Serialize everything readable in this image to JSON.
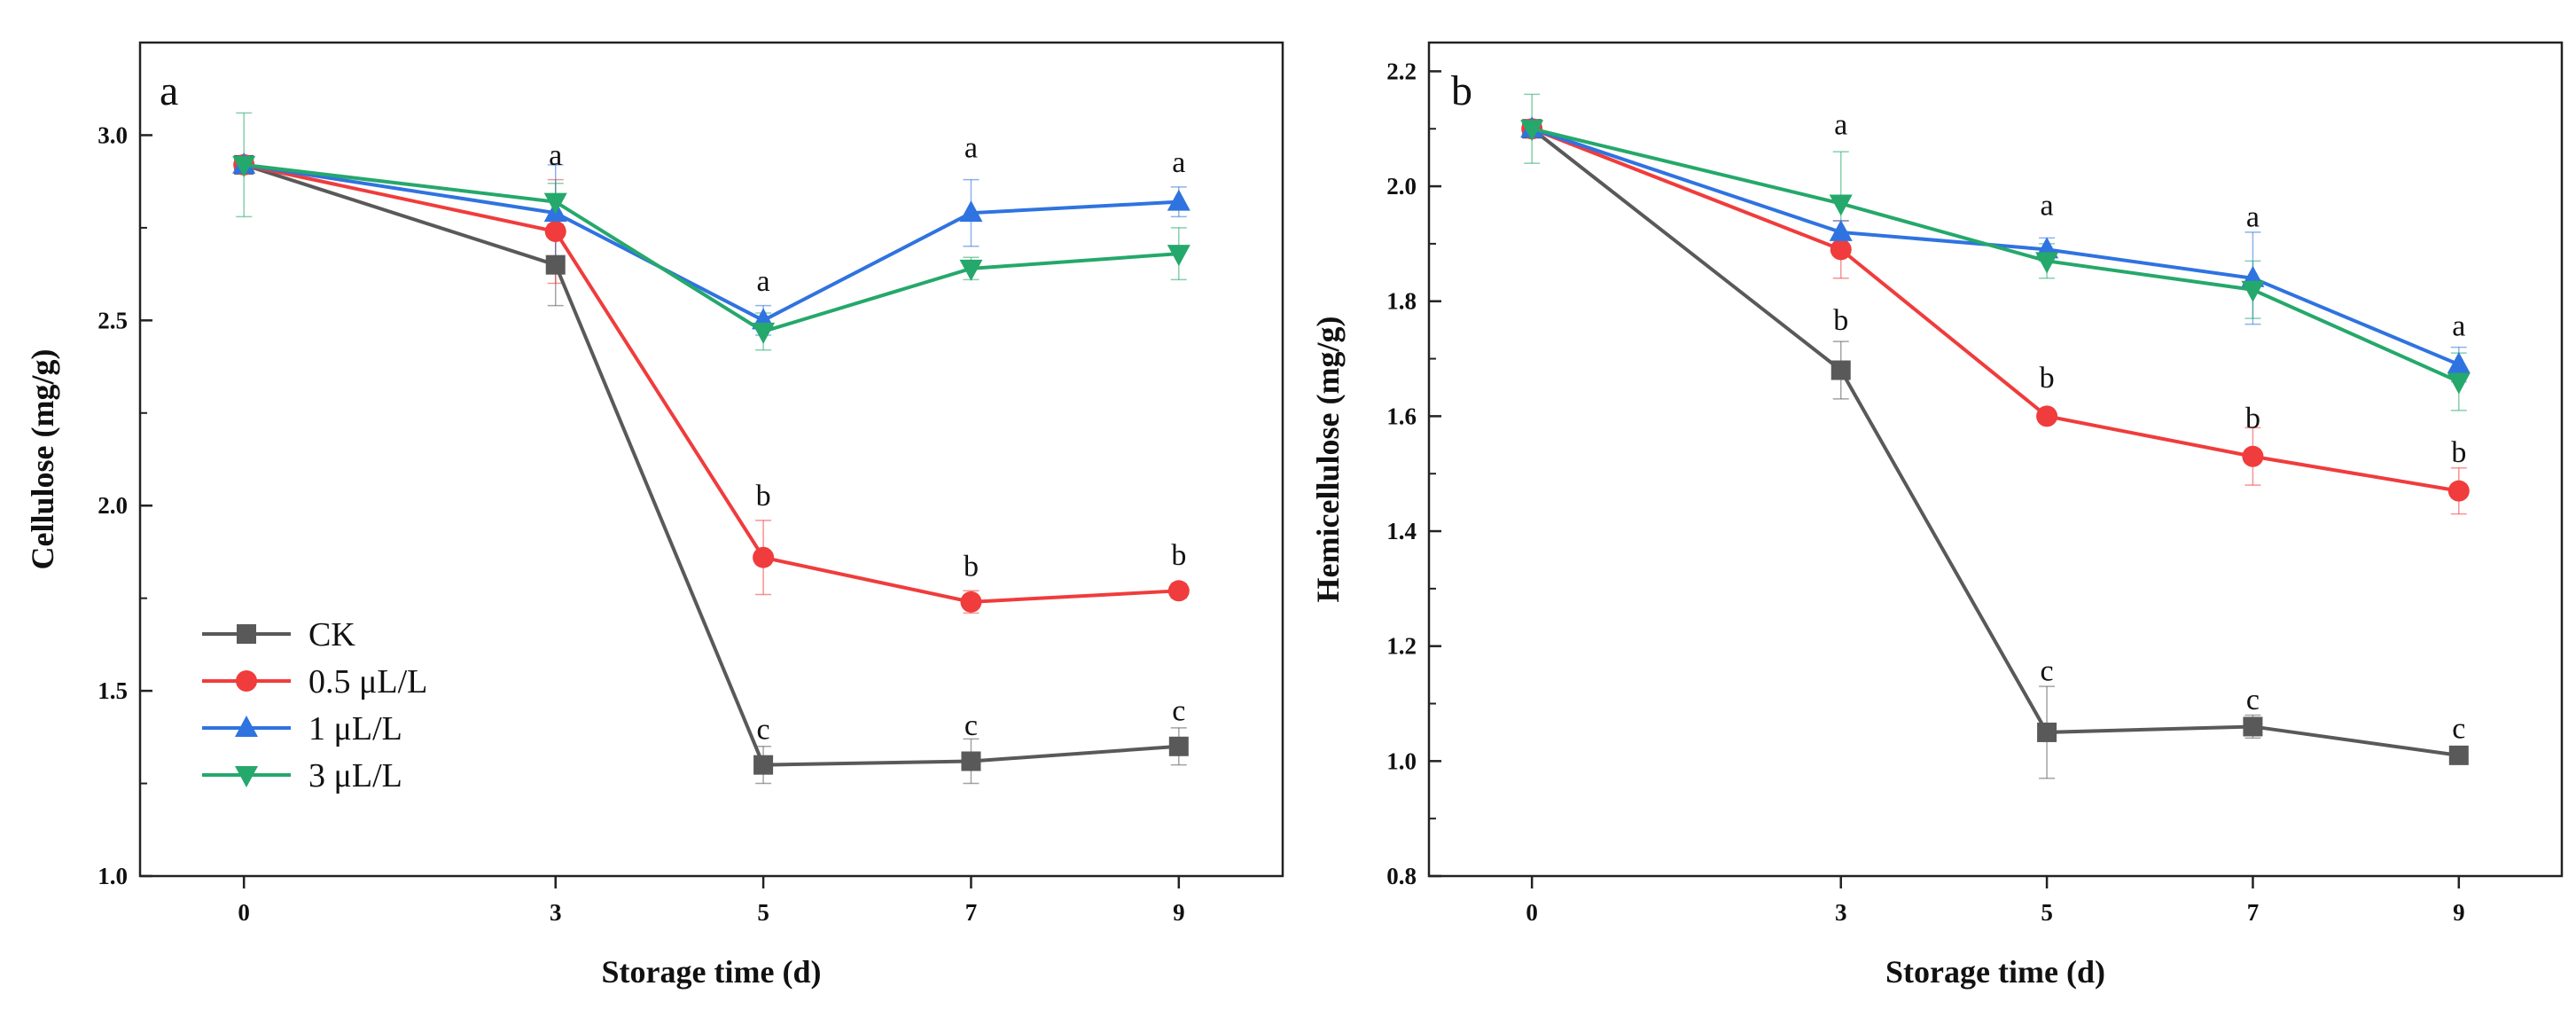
{
  "chart_data": [
    {
      "type": "line",
      "panel_label": "a",
      "xlabel": "Storage time (d)",
      "ylabel": "Cellulose (mg/g)",
      "x": [
        0,
        3,
        5,
        7,
        9
      ],
      "x_tick_labels": [
        "0",
        "3",
        "5",
        "7",
        "9"
      ],
      "y_tick_labels": [
        "1.0",
        "1.5",
        "2.0",
        "2.5",
        "3.0"
      ],
      "ylim": [
        1.0,
        3.25
      ],
      "y_ticks": [
        1.0,
        1.5,
        2.0,
        2.5,
        3.0
      ],
      "series": [
        {
          "name": "CK",
          "color": "#595959",
          "marker": "square",
          "values": [
            2.92,
            2.65,
            1.3,
            1.31,
            1.35
          ],
          "errors": [
            0.0,
            0.11,
            0.05,
            0.06,
            0.05
          ]
        },
        {
          "name": "0.5 μL/L",
          "color": "#f03c3c",
          "marker": "circle",
          "values": [
            2.92,
            2.74,
            1.86,
            1.74,
            1.77
          ],
          "errors": [
            0.0,
            0.14,
            0.1,
            0.03,
            0.02
          ]
        },
        {
          "name": "1 μL/L",
          "color": "#2f73e0",
          "marker": "triangle-up",
          "values": [
            2.92,
            2.79,
            2.5,
            2.79,
            2.82
          ],
          "errors": [
            0.0,
            0.13,
            0.04,
            0.09,
            0.04
          ]
        },
        {
          "name": "3 μL/L",
          "color": "#25a86b",
          "marker": "triangle-down",
          "values": [
            2.92,
            2.82,
            2.47,
            2.64,
            2.68
          ],
          "errors": [
            0.14,
            0.05,
            0.05,
            0.03,
            0.07
          ]
        }
      ],
      "annotations": [
        {
          "x": 3,
          "y": 2.92,
          "text": "a"
        },
        {
          "x": 5,
          "y": 2.58,
          "text": "a"
        },
        {
          "x": 7,
          "y": 2.94,
          "text": "a"
        },
        {
          "x": 9,
          "y": 2.9,
          "text": "a"
        },
        {
          "x": 5,
          "y": 2.0,
          "text": "b"
        },
        {
          "x": 7,
          "y": 1.81,
          "text": "b"
        },
        {
          "x": 9,
          "y": 1.84,
          "text": "b"
        },
        {
          "x": 5,
          "y": 1.37,
          "text": "c"
        },
        {
          "x": 7,
          "y": 1.38,
          "text": "c"
        },
        {
          "x": 9,
          "y": 1.42,
          "text": "c"
        }
      ],
      "legend": {
        "position": "bottom-left",
        "entries": [
          "CK",
          "0.5 μL/L",
          "1 μL/L",
          "3 μL/L"
        ]
      }
    },
    {
      "type": "line",
      "panel_label": "b",
      "xlabel": "Storage time (d)",
      "ylabel": "Hemicellulose (mg/g)",
      "x": [
        0,
        3,
        5,
        7,
        9
      ],
      "x_tick_labels": [
        "0",
        "3",
        "5",
        "7",
        "9"
      ],
      "y_tick_labels": [
        "0.8",
        "1.0",
        "1.2",
        "1.4",
        "1.6",
        "1.8",
        "2.0",
        "2.2"
      ],
      "ylim": [
        0.8,
        2.25
      ],
      "y_ticks": [
        0.8,
        1.0,
        1.2,
        1.4,
        1.6,
        1.8,
        2.0,
        2.2
      ],
      "series": [
        {
          "name": "CK",
          "color": "#595959",
          "marker": "square",
          "values": [
            2.1,
            1.68,
            1.05,
            1.06,
            1.01
          ],
          "errors": [
            0.0,
            0.05,
            0.08,
            0.02,
            0.01
          ]
        },
        {
          "name": "0.5 μL/L",
          "color": "#f03c3c",
          "marker": "circle",
          "values": [
            2.1,
            1.89,
            1.6,
            1.53,
            1.47
          ],
          "errors": [
            0.0,
            0.05,
            0.01,
            0.05,
            0.04
          ]
        },
        {
          "name": "1 μL/L",
          "color": "#2f73e0",
          "marker": "triangle-up",
          "values": [
            2.1,
            1.92,
            1.89,
            1.84,
            1.69
          ],
          "errors": [
            0.0,
            0.02,
            0.02,
            0.08,
            0.03
          ]
        },
        {
          "name": "3 μL/L",
          "color": "#25a86b",
          "marker": "triangle-down",
          "values": [
            2.1,
            1.97,
            1.87,
            1.82,
            1.66
          ],
          "errors": [
            0.06,
            0.09,
            0.03,
            0.05,
            0.05
          ]
        }
      ],
      "annotations": [
        {
          "x": 3,
          "y": 2.09,
          "text": "a"
        },
        {
          "x": 5,
          "y": 1.95,
          "text": "a"
        },
        {
          "x": 7,
          "y": 1.93,
          "text": "a"
        },
        {
          "x": 9,
          "y": 1.74,
          "text": "a"
        },
        {
          "x": 3,
          "y": 1.75,
          "text": "b"
        },
        {
          "x": 5,
          "y": 1.65,
          "text": "b"
        },
        {
          "x": 7,
          "y": 1.58,
          "text": "b"
        },
        {
          "x": 9,
          "y": 1.52,
          "text": "b"
        },
        {
          "x": 5,
          "y": 1.14,
          "text": "c"
        },
        {
          "x": 7,
          "y": 1.09,
          "text": "c"
        },
        {
          "x": 9,
          "y": 1.04,
          "text": "c"
        }
      ]
    }
  ]
}
